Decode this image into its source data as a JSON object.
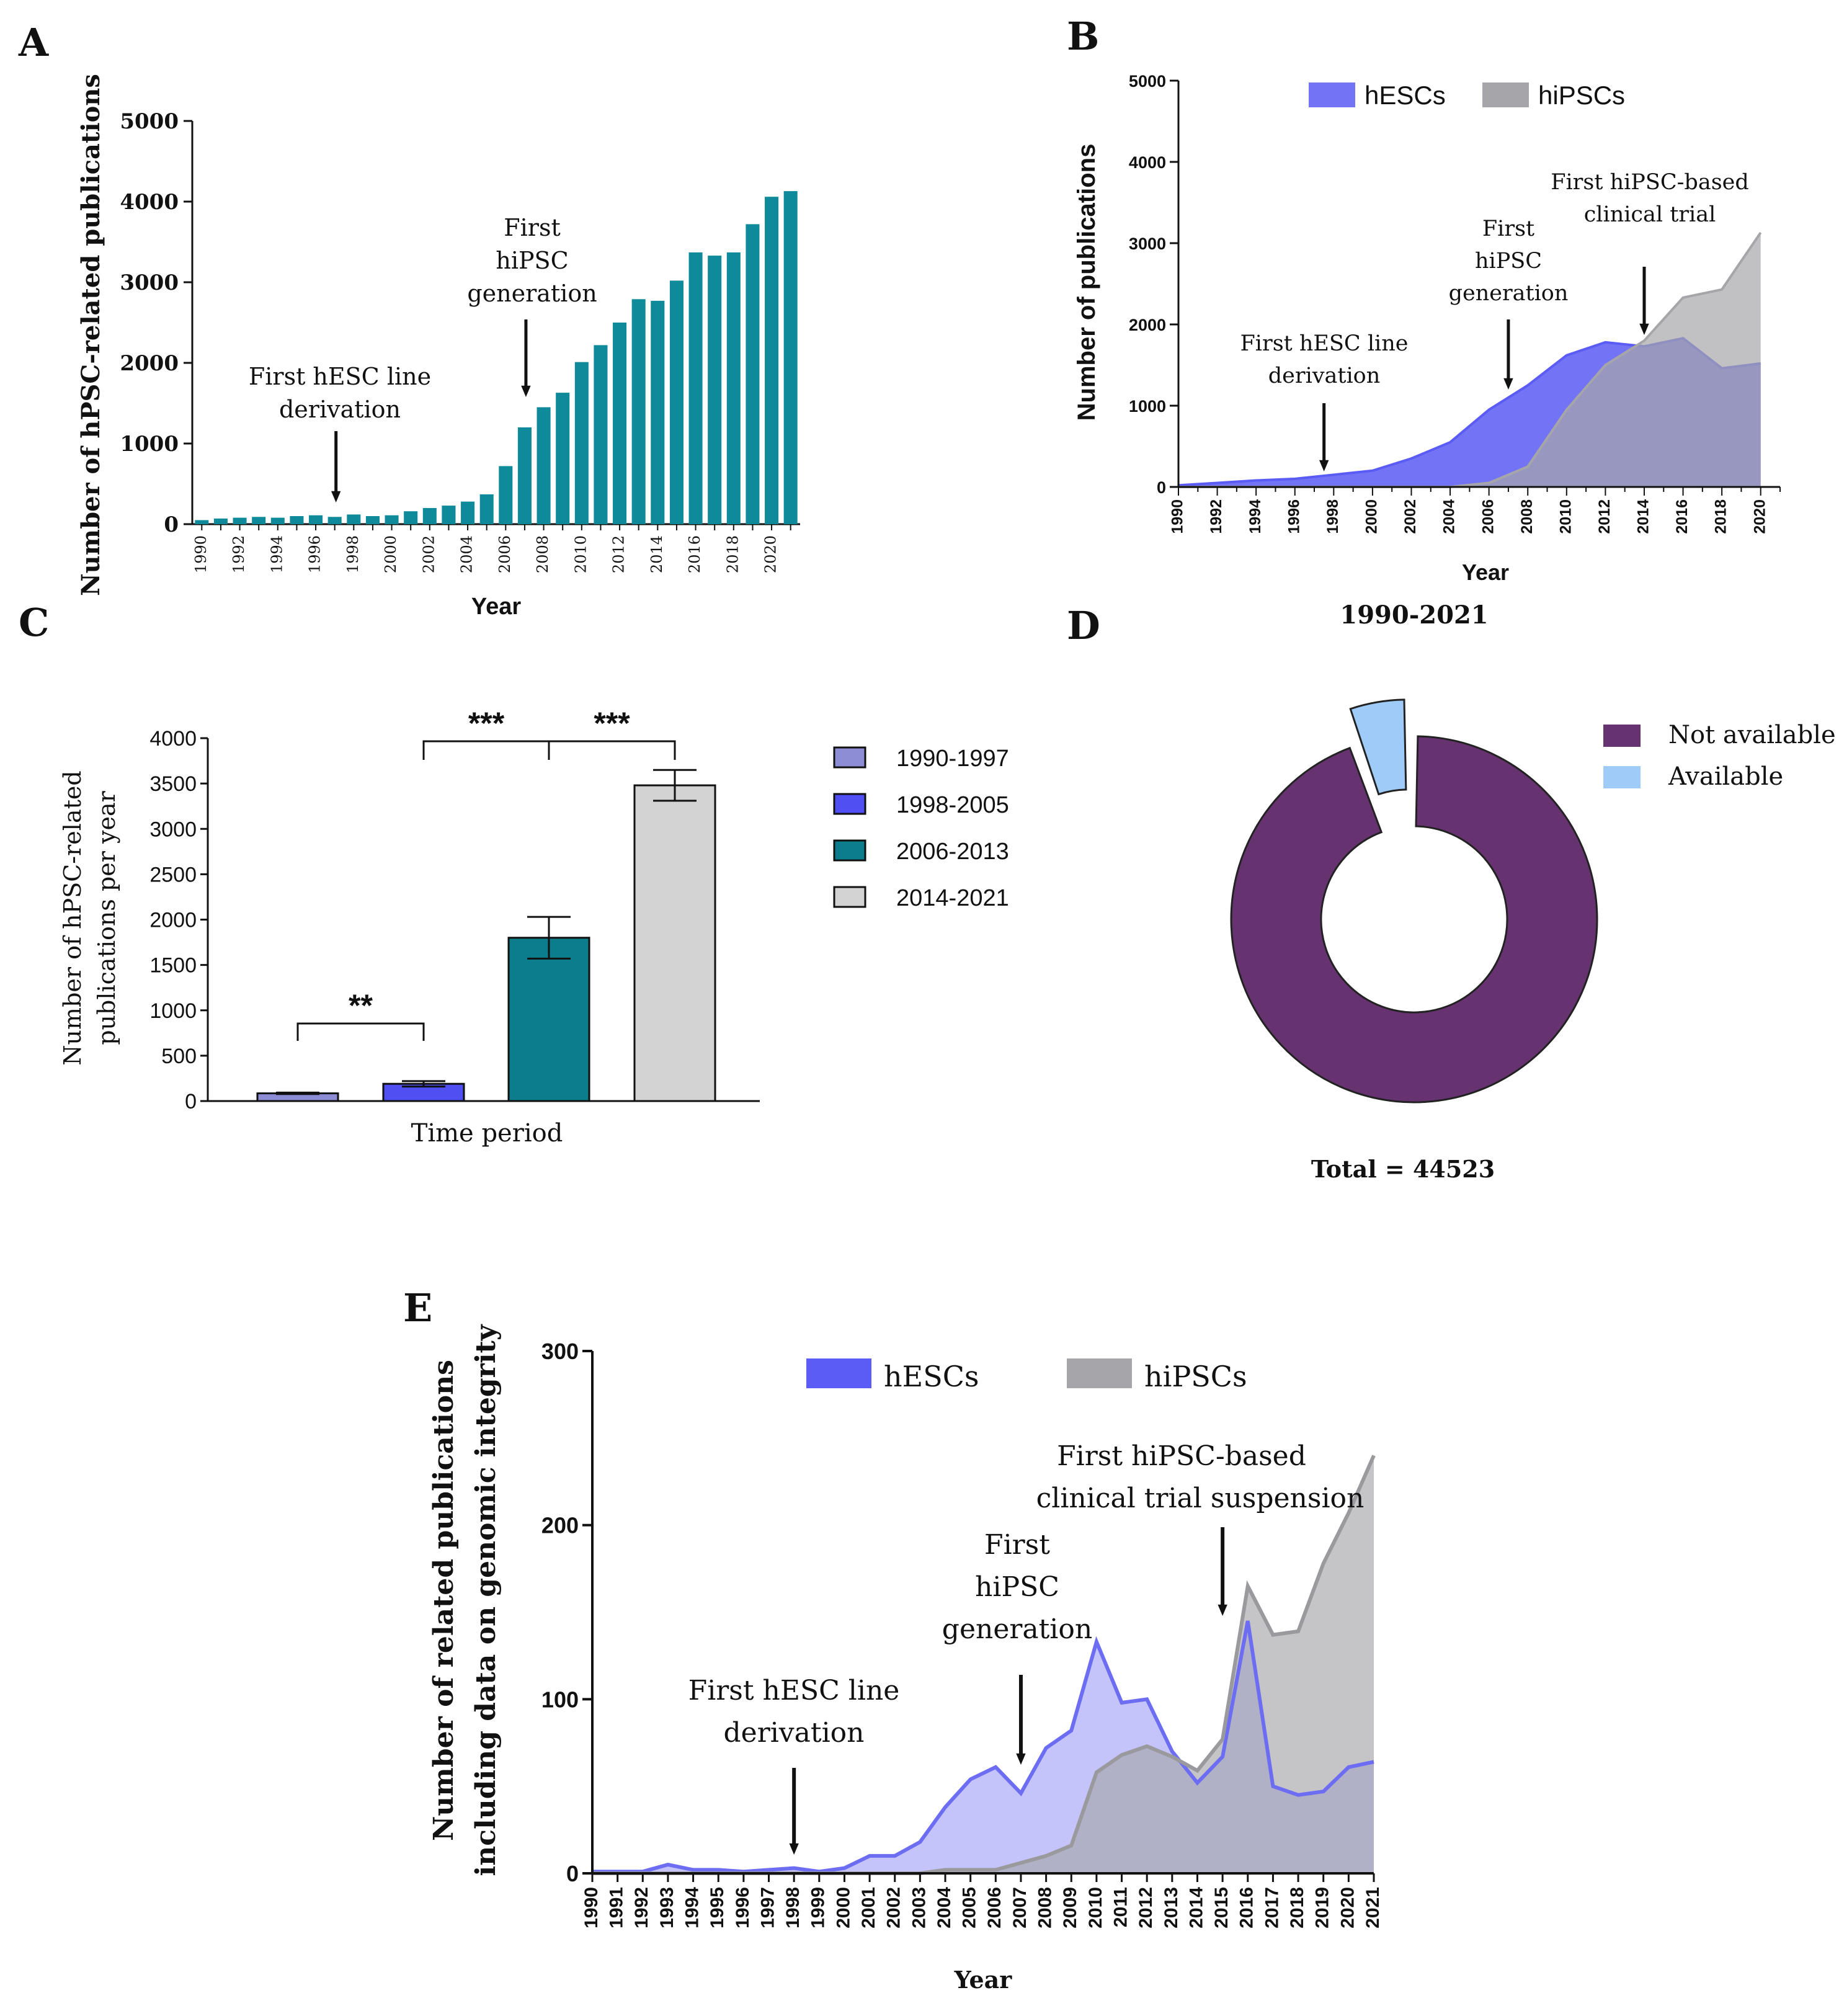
{
  "panels": {
    "A": {
      "letter": "A",
      "chart_data": {
        "type": "bar",
        "title": "",
        "xlabel": "Year",
        "ylabel": "Number of hPSC-related publications",
        "ylim": [
          0,
          5000
        ],
        "yticks": [
          "0",
          "1000",
          "2000",
          "3000",
          "4000",
          "5000"
        ],
        "categories": [
          "1990",
          "1991",
          "1992",
          "1993",
          "1994",
          "1995",
          "1996",
          "1997",
          "1998",
          "1999",
          "2000",
          "2001",
          "2002",
          "2003",
          "2004",
          "2005",
          "2006",
          "2007",
          "2008",
          "2009",
          "2010",
          "2011",
          "2012",
          "2013",
          "2014",
          "2015",
          "2016",
          "2017",
          "2018",
          "2019",
          "2020",
          "2021"
        ],
        "xticks": [
          "1990",
          "1992",
          "1994",
          "1996",
          "1998",
          "2000",
          "2002",
          "2004",
          "2006",
          "2008",
          "2010",
          "2012",
          "2014",
          "2016",
          "2018",
          "2020"
        ],
        "values": [
          50,
          70,
          80,
          90,
          80,
          100,
          110,
          90,
          120,
          100,
          110,
          160,
          200,
          230,
          280,
          370,
          720,
          1200,
          1450,
          1630,
          2010,
          2220,
          2500,
          2790,
          2770,
          3020,
          3370,
          3330,
          3370,
          3720,
          4060,
          4130
        ],
        "color": "#0e8a9a",
        "annotations": [
          {
            "lines": [
              "First hESC line",
              "derivation"
            ],
            "year": 1997
          },
          {
            "lines": [
              "First",
              "hiPSC",
              "generation"
            ],
            "year": 2007
          }
        ]
      }
    },
    "B": {
      "letter": "B",
      "chart_data": {
        "type": "area",
        "xlabel": "Year",
        "ylabel": "Number of publications",
        "caption": "1990-2021",
        "ylim": [
          0,
          5000
        ],
        "yticks": [
          "0",
          "1000",
          "2000",
          "3000",
          "4000",
          "5000"
        ],
        "xticks": [
          "1990",
          "1992",
          "1994",
          "1996",
          "1998",
          "2000",
          "2002",
          "2004",
          "2006",
          "2008",
          "2010",
          "2012",
          "2014",
          "2016",
          "2018",
          "2020"
        ],
        "x": [
          1990,
          1992,
          1994,
          1996,
          1998,
          2000,
          2002,
          2004,
          2006,
          2008,
          2010,
          2012,
          2014,
          2016,
          2018,
          2020
        ],
        "series": [
          {
            "name": "hESCs",
            "color": "#5b5bf5",
            "values": [
              20,
              50,
              80,
              100,
              150,
              200,
              350,
              550,
              950,
              1250,
              1620,
              1780,
              1730,
              1830,
              1460,
              1520
            ]
          },
          {
            "name": "hiPSCs",
            "color": "#a6a6aa",
            "values": [
              0,
              0,
              0,
              0,
              0,
              0,
              0,
              0,
              50,
              250,
              950,
              1500,
              1800,
              2330,
              2430,
              3130
            ]
          }
        ],
        "annotations": [
          {
            "lines": [
              "First hESC line",
              "derivation"
            ],
            "year": 1997.5
          },
          {
            "lines": [
              "First",
              "hiPSC",
              "generation"
            ],
            "year": 2007
          },
          {
            "lines": [
              "First hiPSC-based",
              "clinical trial"
            ],
            "year": 2014
          }
        ]
      }
    },
    "C": {
      "letter": "C",
      "chart_data": {
        "type": "bar",
        "xlabel": "Time period",
        "ylabel_lines": [
          "Number of hPSC-related",
          "publications per year"
        ],
        "ylim": [
          0,
          4000
        ],
        "yticks": [
          "0",
          "500",
          "1000",
          "1500",
          "2000",
          "2500",
          "3000",
          "3500",
          "4000"
        ],
        "categories": [
          "1990-1997",
          "1998-2005",
          "2006-2013",
          "2014-2021"
        ],
        "values": [
          85,
          190,
          1800,
          3480
        ],
        "errors": [
          8,
          30,
          230,
          170
        ],
        "colors": [
          "#8d8dd6",
          "#4f4ff2",
          "#0c7d8c",
          "#d3d3d3"
        ],
        "significance": [
          {
            "from": 0,
            "to": 1,
            "label": "**"
          },
          {
            "from": 1,
            "to": 2,
            "label": "***"
          },
          {
            "from": 2,
            "to": 3,
            "label": "***"
          }
        ]
      }
    },
    "D": {
      "letter": "D",
      "chart_data": {
        "type": "pie",
        "title": "1990-2021",
        "total_label": "Total = 44523",
        "slices": [
          {
            "name": "Not available",
            "value": 94.6,
            "color": "#663370"
          },
          {
            "name": "Available",
            "value": 5.4,
            "color": "#9ecbf7"
          }
        ]
      }
    },
    "E": {
      "letter": "E",
      "chart_data": {
        "type": "area",
        "xlabel": "Year",
        "ylabel_lines": [
          "Number of related publications",
          "including data on genomic integrity"
        ],
        "ylim": [
          0,
          300
        ],
        "yticks": [
          "0",
          "100",
          "200",
          "300"
        ],
        "x": [
          1990,
          1991,
          1992,
          1993,
          1994,
          1995,
          1996,
          1997,
          1998,
          1999,
          2000,
          2001,
          2002,
          2003,
          2004,
          2005,
          2006,
          2007,
          2008,
          2009,
          2010,
          2011,
          2012,
          2013,
          2014,
          2015,
          2016,
          2017,
          2018,
          2019,
          2020,
          2021
        ],
        "series": [
          {
            "name": "hESCs",
            "color": "#5b5bf5",
            "values": [
              1,
              1,
              1,
              5,
              2,
              2,
              1,
              2,
              3,
              1,
              3,
              10,
              10,
              18,
              38,
              54,
              61,
              46,
              72,
              82,
              133,
              98,
              100,
              70,
              52,
              67,
              145,
              50,
              45,
              47,
              61,
              64
            ]
          },
          {
            "name": "hiPSCs",
            "color": "#a6a6aa",
            "values": [
              0,
              0,
              0,
              0,
              0,
              0,
              0,
              0,
              0,
              0,
              0,
              0,
              0,
              0,
              2,
              2,
              2,
              6,
              10,
              16,
              58,
              68,
              73,
              67,
              59,
              77,
              165,
              137,
              139,
              178,
              207,
              240
            ]
          }
        ],
        "annotations": [
          {
            "lines": [
              "First hESC line",
              "derivation"
            ],
            "year": 1998
          },
          {
            "lines": [
              "First",
              "hiPSC",
              "generation"
            ],
            "year": 2007
          },
          {
            "lines": [
              "First hiPSC-based",
              "clinical trial suspension"
            ],
            "year": 2015
          }
        ]
      }
    }
  }
}
